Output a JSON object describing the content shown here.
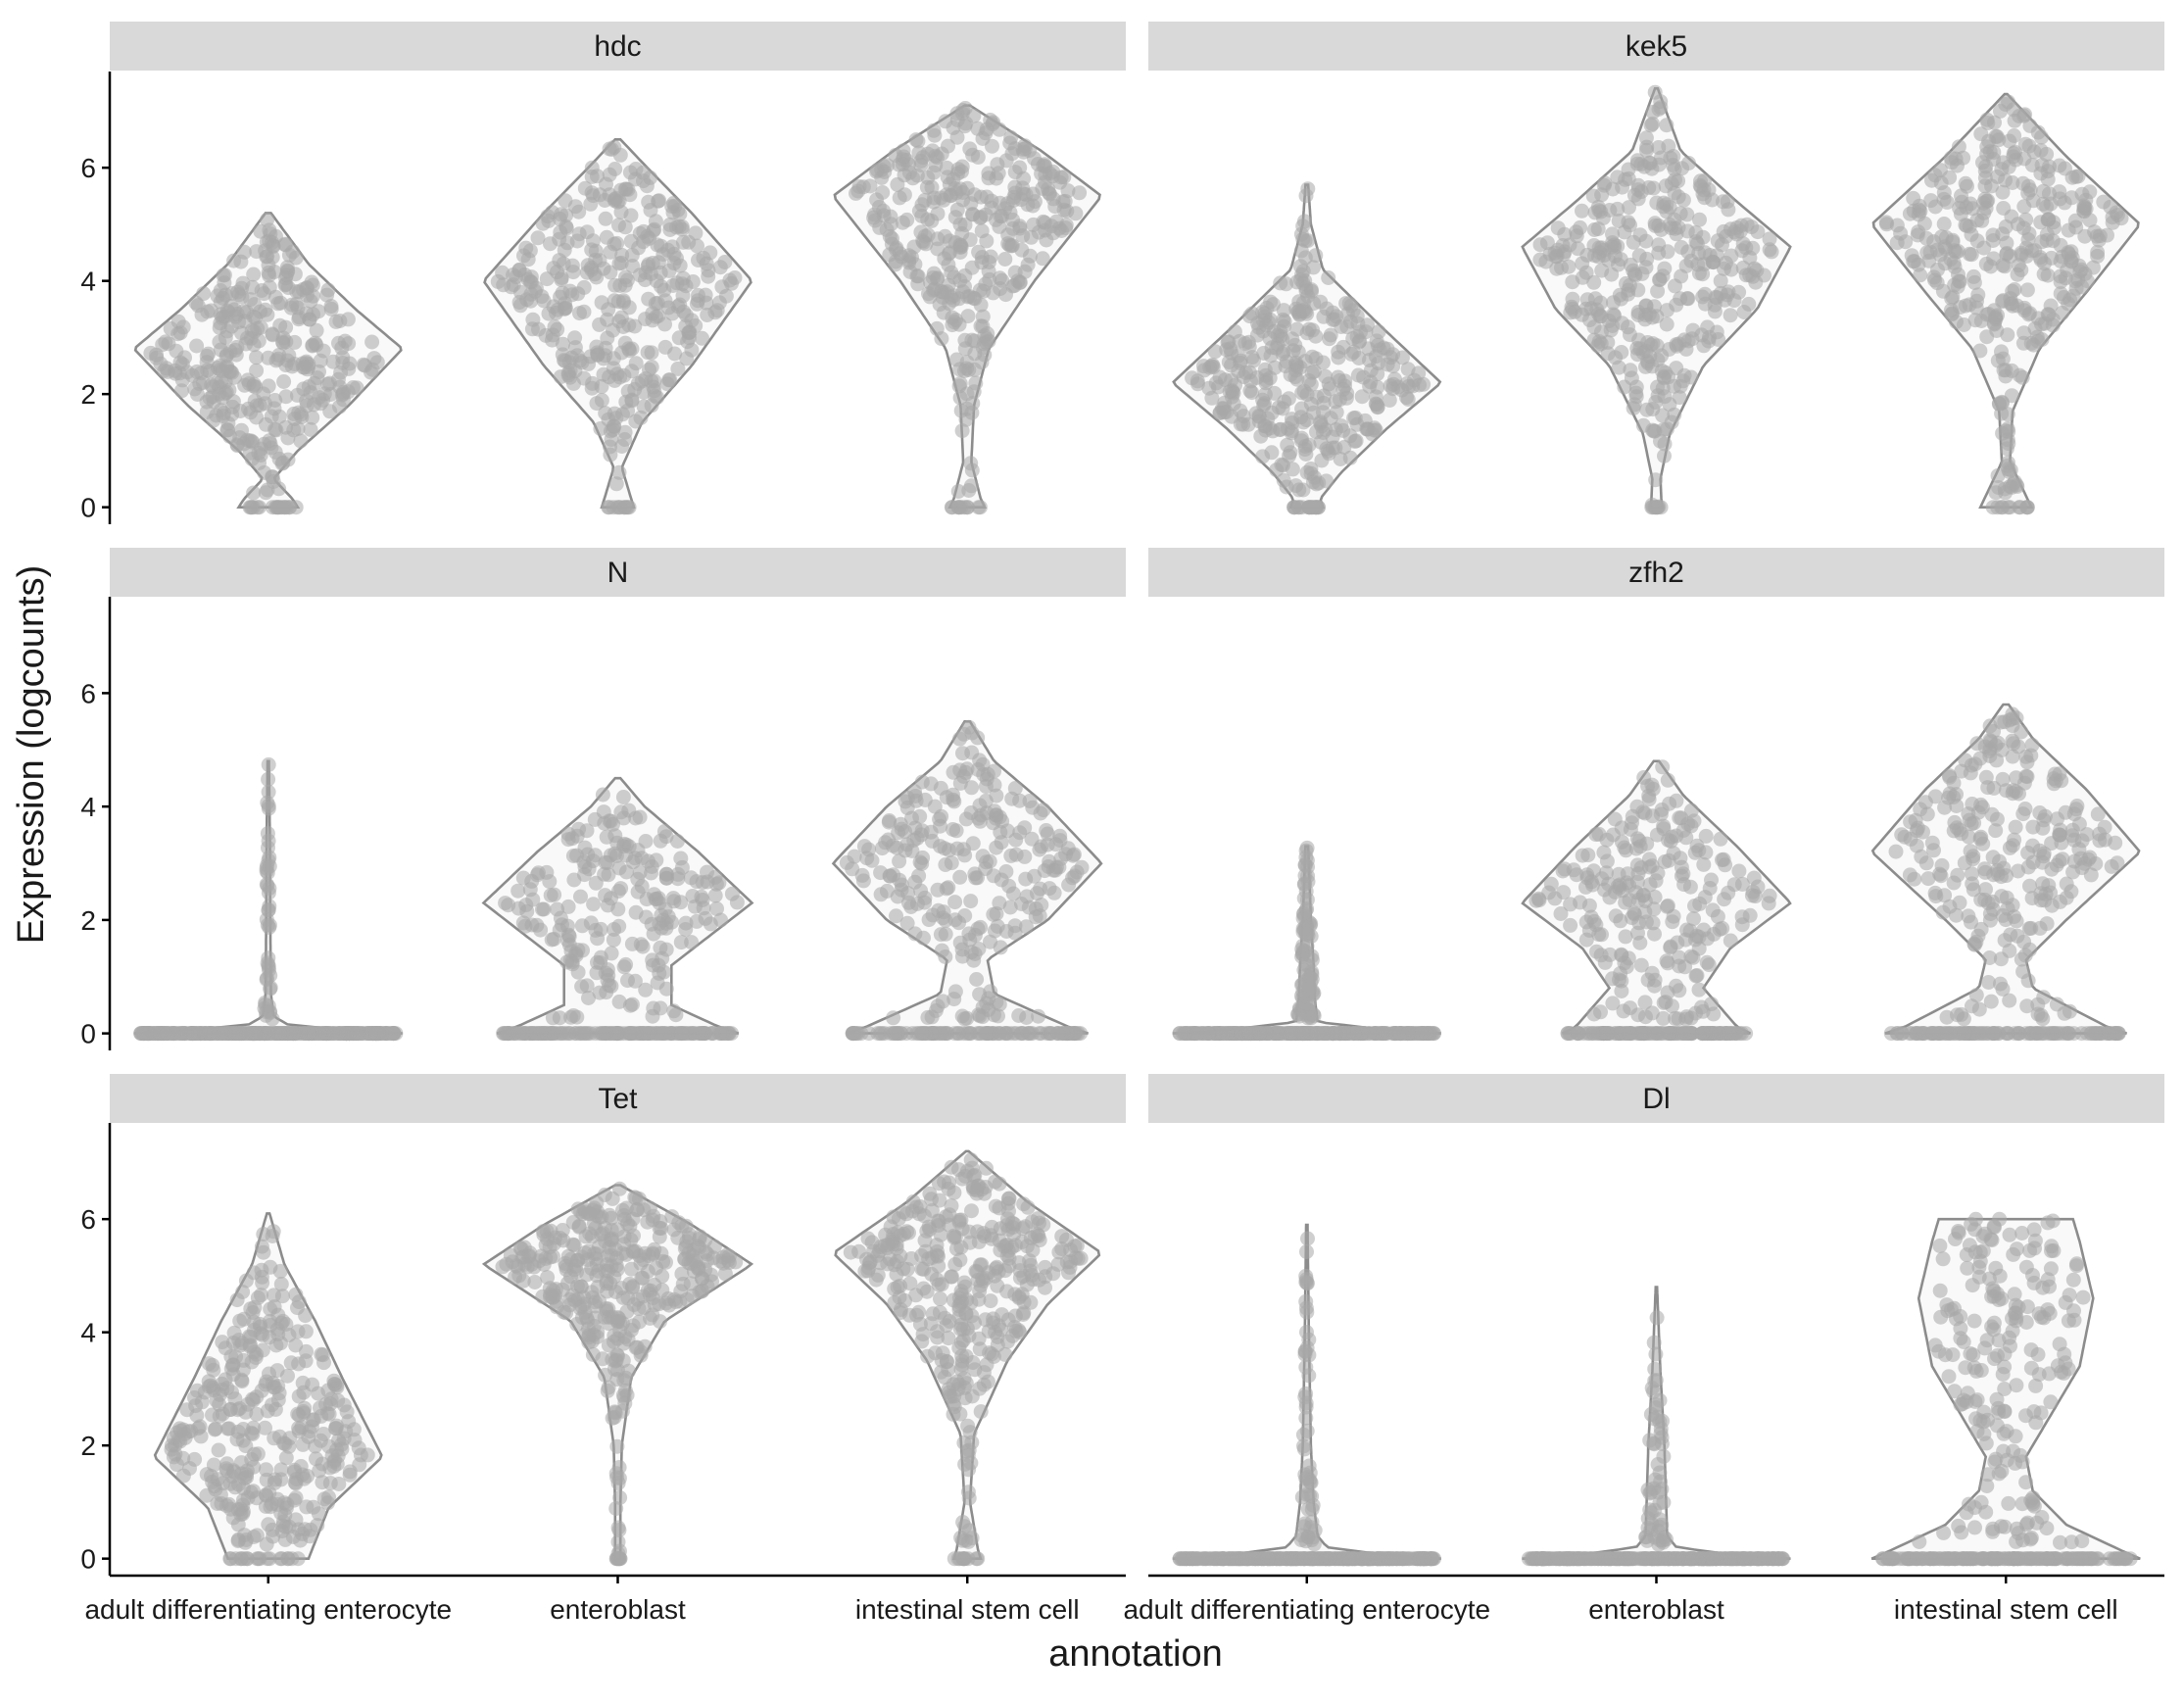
{
  "chart_data": {
    "type": "violin",
    "xlabel": "annotation",
    "ylabel": "Expression (logcounts)",
    "categories": [
      "adult differentiating enterocyte",
      "enteroblast",
      "intestinal stem cell"
    ],
    "y_ticks": [
      0,
      2,
      4,
      6
    ],
    "ylim": [
      -0.3,
      7.7
    ],
    "colors": {
      "strip": "#d9d9d9",
      "points": "#a8a8a8",
      "violin_outline": "#8c8c8c",
      "violin_fill": "#f9f9f9"
    },
    "facets": [
      {
        "gene": "hdc",
        "groups": [
          {
            "category": "adult differentiating enterocyte",
            "max": 5.2,
            "zero_fraction": 0.05,
            "profile": [
              [
                0,
                0.22
              ],
              [
                0.15,
                0.18
              ],
              [
                0.5,
                0.04
              ],
              [
                1.0,
                0.22
              ],
              [
                1.8,
                0.6
              ],
              [
                2.8,
                1.0
              ],
              [
                3.5,
                0.65
              ],
              [
                4.3,
                0.3
              ],
              [
                5.2,
                0.02
              ]
            ]
          },
          {
            "category": "enteroblast",
            "max": 6.5,
            "zero_fraction": 0.03,
            "profile": [
              [
                0,
                0.12
              ],
              [
                0.15,
                0.1
              ],
              [
                0.7,
                0.03
              ],
              [
                1.5,
                0.18
              ],
              [
                2.5,
                0.55
              ],
              [
                4.0,
                1.0
              ],
              [
                5.2,
                0.55
              ],
              [
                6.0,
                0.22
              ],
              [
                6.5,
                0.02
              ]
            ]
          },
          {
            "category": "intestinal stem cell",
            "max": 7.1,
            "zero_fraction": 0.03,
            "profile": [
              [
                0,
                0.13
              ],
              [
                0.15,
                0.1
              ],
              [
                0.8,
                0.03
              ],
              [
                1.8,
                0.05
              ],
              [
                2.8,
                0.16
              ],
              [
                4.0,
                0.5
              ],
              [
                5.5,
                1.0
              ],
              [
                6.3,
                0.55
              ],
              [
                7.1,
                0.02
              ]
            ]
          }
        ]
      },
      {
        "gene": "kek5",
        "groups": [
          {
            "category": "adult differentiating enterocyte",
            "max": 5.7,
            "zero_fraction": 0.05,
            "profile": [
              [
                0,
                0.12
              ],
              [
                0.15,
                0.1
              ],
              [
                0.6,
                0.25
              ],
              [
                1.4,
                0.6
              ],
              [
                2.2,
                1.0
              ],
              [
                3.2,
                0.55
              ],
              [
                4.2,
                0.12
              ],
              [
                5.0,
                0.03
              ],
              [
                5.7,
                0.01
              ]
            ]
          },
          {
            "category": "enteroblast",
            "max": 7.4,
            "zero_fraction": 0.02,
            "profile": [
              [
                0,
                0.04
              ],
              [
                0.5,
                0.03
              ],
              [
                1.3,
                0.1
              ],
              [
                2.5,
                0.35
              ],
              [
                3.5,
                0.75
              ],
              [
                4.6,
                1.0
              ],
              [
                5.4,
                0.6
              ],
              [
                6.3,
                0.18
              ],
              [
                7.4,
                0.01
              ]
            ]
          },
          {
            "category": "intestinal stem cell",
            "max": 7.3,
            "zero_fraction": 0.03,
            "profile": [
              [
                0,
                0.19
              ],
              [
                0.15,
                0.16
              ],
              [
                0.8,
                0.03
              ],
              [
                1.7,
                0.05
              ],
              [
                2.8,
                0.25
              ],
              [
                3.8,
                0.6
              ],
              [
                5.0,
                1.0
              ],
              [
                6.2,
                0.45
              ],
              [
                7.3,
                0.01
              ]
            ]
          }
        ]
      },
      {
        "gene": "N",
        "groups": [
          {
            "category": "adult differentiating enterocyte",
            "max": 4.8,
            "zero_fraction": 0.88,
            "profile": [
              [
                0,
                1.0
              ],
              [
                0.06,
                0.6
              ],
              [
                0.15,
                0.15
              ],
              [
                0.3,
                0.04
              ],
              [
                0.7,
                0.02
              ],
              [
                2.0,
                0.015
              ],
              [
                3.5,
                0.012
              ],
              [
                4.8,
                0.005
              ]
            ]
          },
          {
            "category": "enteroblast",
            "max": 4.5,
            "zero_fraction": 0.4,
            "profile": [
              [
                0,
                0.9
              ],
              [
                0.12,
                0.75
              ],
              [
                0.5,
                0.4
              ],
              [
                1.2,
                0.4
              ],
              [
                2.3,
                1.0
              ],
              [
                3.2,
                0.6
              ],
              [
                4.0,
                0.2
              ],
              [
                4.5,
                0.02
              ]
            ]
          },
          {
            "category": "intestinal stem cell",
            "max": 5.5,
            "zero_fraction": 0.3,
            "profile": [
              [
                0,
                0.9
              ],
              [
                0.12,
                0.75
              ],
              [
                0.7,
                0.2
              ],
              [
                1.3,
                0.15
              ],
              [
                2.0,
                0.6
              ],
              [
                3.0,
                1.0
              ],
              [
                4.0,
                0.6
              ],
              [
                4.8,
                0.2
              ],
              [
                5.5,
                0.02
              ]
            ]
          }
        ]
      },
      {
        "gene": "zfh2",
        "groups": [
          {
            "category": "adult differentiating enterocyte",
            "max": 3.3,
            "zero_fraction": 0.75,
            "profile": [
              [
                0,
                1.0
              ],
              [
                0.06,
                0.6
              ],
              [
                0.2,
                0.08
              ],
              [
                0.6,
                0.06
              ],
              [
                1.2,
                0.05
              ],
              [
                2.0,
                0.03
              ],
              [
                3.3,
                0.01
              ]
            ]
          },
          {
            "category": "enteroblast",
            "max": 4.8,
            "zero_fraction": 0.35,
            "profile": [
              [
                0,
                0.7
              ],
              [
                0.12,
                0.6
              ],
              [
                0.8,
                0.35
              ],
              [
                1.5,
                0.55
              ],
              [
                2.3,
                1.0
              ],
              [
                3.3,
                0.6
              ],
              [
                4.2,
                0.2
              ],
              [
                4.8,
                0.02
              ]
            ]
          },
          {
            "category": "intestinal stem cell",
            "max": 5.8,
            "zero_fraction": 0.3,
            "profile": [
              [
                0,
                0.9
              ],
              [
                0.12,
                0.75
              ],
              [
                0.8,
                0.2
              ],
              [
                1.3,
                0.15
              ],
              [
                2.0,
                0.45
              ],
              [
                3.2,
                1.0
              ],
              [
                4.3,
                0.6
              ],
              [
                5.2,
                0.2
              ],
              [
                5.8,
                0.02
              ]
            ]
          }
        ]
      },
      {
        "gene": "Tet",
        "groups": [
          {
            "category": "adult differentiating enterocyte",
            "max": 6.1,
            "zero_fraction": 0.05,
            "profile": [
              [
                0,
                0.3
              ],
              [
                0.3,
                0.35
              ],
              [
                0.9,
                0.45
              ],
              [
                1.8,
                0.85
              ],
              [
                2.5,
                0.7
              ],
              [
                3.2,
                0.55
              ],
              [
                4.2,
                0.35
              ],
              [
                5.2,
                0.12
              ],
              [
                6.1,
                0.01
              ]
            ]
          },
          {
            "category": "enteroblast",
            "max": 6.6,
            "zero_fraction": 0.02,
            "profile": [
              [
                0,
                0.02
              ],
              [
                1.0,
                0.02
              ],
              [
                2.0,
                0.03
              ],
              [
                3.2,
                0.1
              ],
              [
                4.2,
                0.35
              ],
              [
                5.2,
                1.0
              ],
              [
                5.9,
                0.55
              ],
              [
                6.6,
                0.02
              ]
            ]
          },
          {
            "category": "intestinal stem cell",
            "max": 7.2,
            "zero_fraction": 0.03,
            "profile": [
              [
                0,
                0.1
              ],
              [
                0.15,
                0.08
              ],
              [
                1.0,
                0.02
              ],
              [
                2.2,
                0.05
              ],
              [
                3.5,
                0.3
              ],
              [
                4.5,
                0.6
              ],
              [
                5.4,
                1.0
              ],
              [
                6.3,
                0.45
              ],
              [
                7.2,
                0.01
              ]
            ]
          }
        ]
      },
      {
        "gene": "Dl",
        "groups": [
          {
            "category": "adult differentiating enterocyte",
            "max": 5.9,
            "zero_fraction": 0.85,
            "profile": [
              [
                0,
                1.0
              ],
              [
                0.06,
                0.6
              ],
              [
                0.2,
                0.15
              ],
              [
                0.4,
                0.08
              ],
              [
                1.0,
                0.05
              ],
              [
                2.0,
                0.03
              ],
              [
                4.0,
                0.015
              ],
              [
                5.9,
                0.005
              ]
            ]
          },
          {
            "category": "enteroblast",
            "max": 4.8,
            "zero_fraction": 0.85,
            "profile": [
              [
                0,
                1.0
              ],
              [
                0.06,
                0.6
              ],
              [
                0.2,
                0.15
              ],
              [
                0.4,
                0.08
              ],
              [
                1.2,
                0.07
              ],
              [
                2.0,
                0.06
              ],
              [
                3.3,
                0.03
              ],
              [
                4.8,
                0.005
              ]
            ]
          },
          {
            "category": "intestinal stem cell",
            "max": 6.0,
            "zero_fraction": 0.45,
            "profile": [
              [
                0,
                1.0
              ],
              [
                0.1,
                0.9
              ],
              [
                0.6,
                0.45
              ],
              [
                1.2,
                0.2
              ],
              [
                1.8,
                0.15
              ],
              [
                2.4,
                0.3
              ],
              [
                3.4,
                0.55
              ],
              [
                4.6,
                0.65
              ],
              [
                5.6,
                0.55
              ],
              [
                6.0,
                0.5
              ]
            ]
          }
        ]
      }
    ]
  }
}
